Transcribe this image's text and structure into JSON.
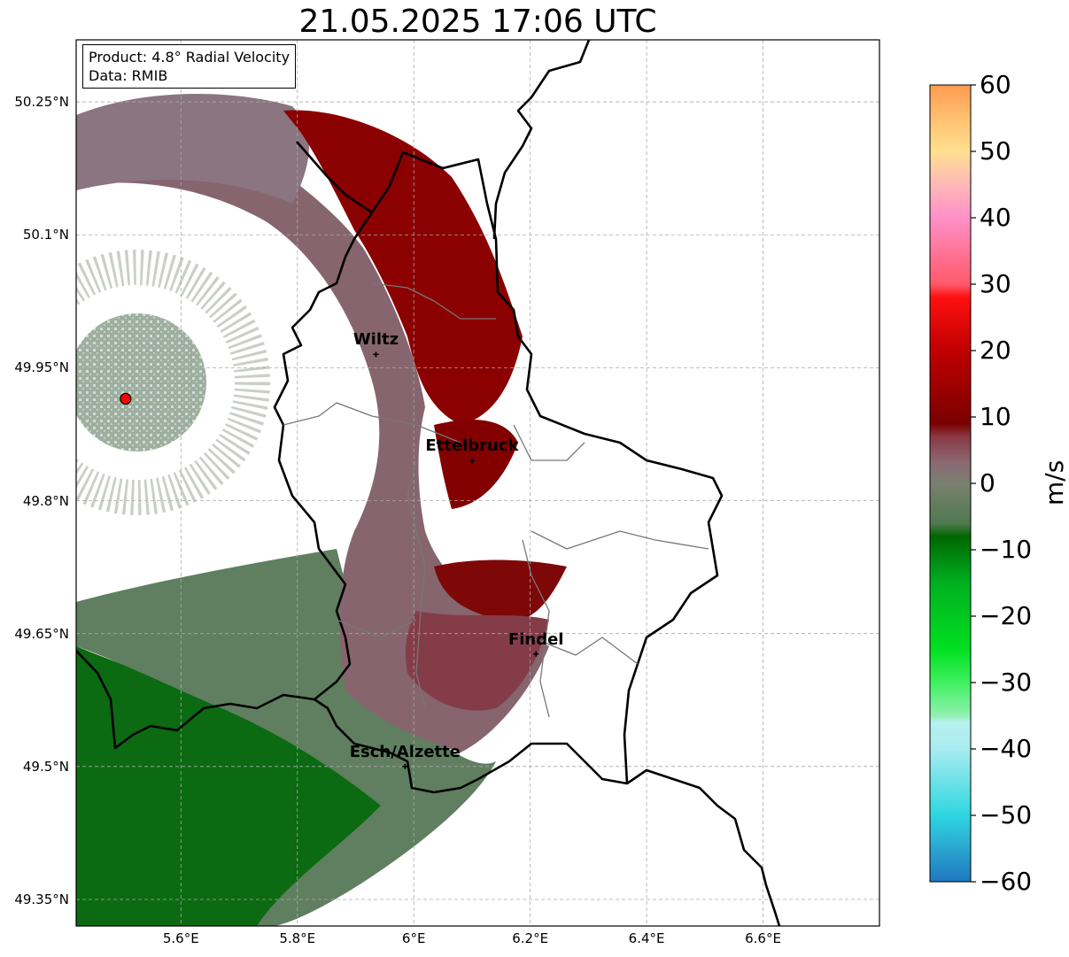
{
  "title": "21.05.2025 17:06 UTC",
  "info": {
    "product": "Product: 4.8° Radial Velocity",
    "source": "Data: RMIB"
  },
  "map": {
    "lon_range": [
      5.42,
      6.8
    ],
    "lat_range": [
      49.32,
      50.32
    ],
    "radar_site": {
      "lon": 5.505,
      "lat": 49.915
    },
    "cities": [
      {
        "name": "Wiltz",
        "lon": 5.935,
        "lat": 49.965
      },
      {
        "name": "Ettelbruck",
        "lon": 6.1,
        "lat": 49.845
      },
      {
        "name": "Findel",
        "lon": 6.21,
        "lat": 49.627
      },
      {
        "name": "Esch/Alzette",
        "lon": 5.985,
        "lat": 49.5
      }
    ],
    "lat_ticks": [
      {
        "value": 50.25,
        "label": "50.25°N"
      },
      {
        "value": 50.1,
        "label": "50.1°N"
      },
      {
        "value": 49.95,
        "label": "49.95°N"
      },
      {
        "value": 49.8,
        "label": "49.8°N"
      },
      {
        "value": 49.65,
        "label": "49.65°N"
      },
      {
        "value": 49.5,
        "label": "49.5°N"
      },
      {
        "value": 49.35,
        "label": "49.35°N"
      }
    ],
    "lon_ticks": [
      {
        "value": 5.6,
        "label": "5.6°E"
      },
      {
        "value": 5.8,
        "label": "5.8°E"
      },
      {
        "value": 6.0,
        "label": "6°E"
      },
      {
        "value": 6.2,
        "label": "6.2°E"
      },
      {
        "value": 6.4,
        "label": "6.4°E"
      },
      {
        "value": 6.6,
        "label": "6.6°E"
      }
    ],
    "grid": true
  },
  "colorbar": {
    "unit": "m/s",
    "range": [
      -60,
      60
    ],
    "ticks": [
      {
        "value": 60,
        "label": "60"
      },
      {
        "value": 50,
        "label": "50"
      },
      {
        "value": 40,
        "label": "40"
      },
      {
        "value": 30,
        "label": "30"
      },
      {
        "value": 20,
        "label": "20"
      },
      {
        "value": 10,
        "label": "10"
      },
      {
        "value": 0,
        "label": "0"
      },
      {
        "value": -10,
        "label": "−10"
      },
      {
        "value": -20,
        "label": "−20"
      },
      {
        "value": -30,
        "label": "−30"
      },
      {
        "value": -40,
        "label": "−40"
      },
      {
        "value": -50,
        "label": "−50"
      },
      {
        "value": -60,
        "label": "−60"
      }
    ],
    "stops": [
      {
        "v": -60,
        "color": "#1f77c0"
      },
      {
        "v": -55,
        "color": "#2aa6d0"
      },
      {
        "v": -50,
        "color": "#2ed6e0"
      },
      {
        "v": -40,
        "color": "#a8ecf0"
      },
      {
        "v": -36,
        "color": "#b8f0f0"
      },
      {
        "v": -35,
        "color": "#90f0b0"
      },
      {
        "v": -30,
        "color": "#40f060"
      },
      {
        "v": -25,
        "color": "#00e020"
      },
      {
        "v": -15,
        "color": "#00b020"
      },
      {
        "v": -8,
        "color": "#006600"
      },
      {
        "v": -6,
        "color": "#507a50"
      },
      {
        "v": 0,
        "color": "#7a8070"
      },
      {
        "v": 3,
        "color": "#8a6a75"
      },
      {
        "v": 7,
        "color": "#8a3a45"
      },
      {
        "v": 9,
        "color": "#7a0000"
      },
      {
        "v": 20,
        "color": "#c00000"
      },
      {
        "v": 28,
        "color": "#ff1010"
      },
      {
        "v": 30,
        "color": "#ff5a6a"
      },
      {
        "v": 40,
        "color": "#ff90c8"
      },
      {
        "v": 45,
        "color": "#ffb8b8"
      },
      {
        "v": 50,
        "color": "#ffe090"
      },
      {
        "v": 55,
        "color": "#ffc070"
      },
      {
        "v": 60,
        "color": "#ff9a50"
      }
    ]
  },
  "colors": {
    "receding": "#8b0000",
    "approaching": "#006400",
    "near_zero_pos": "#85606a",
    "near_zero_neg": "#5b7a5b",
    "radar_marker": "#ff0000"
  }
}
